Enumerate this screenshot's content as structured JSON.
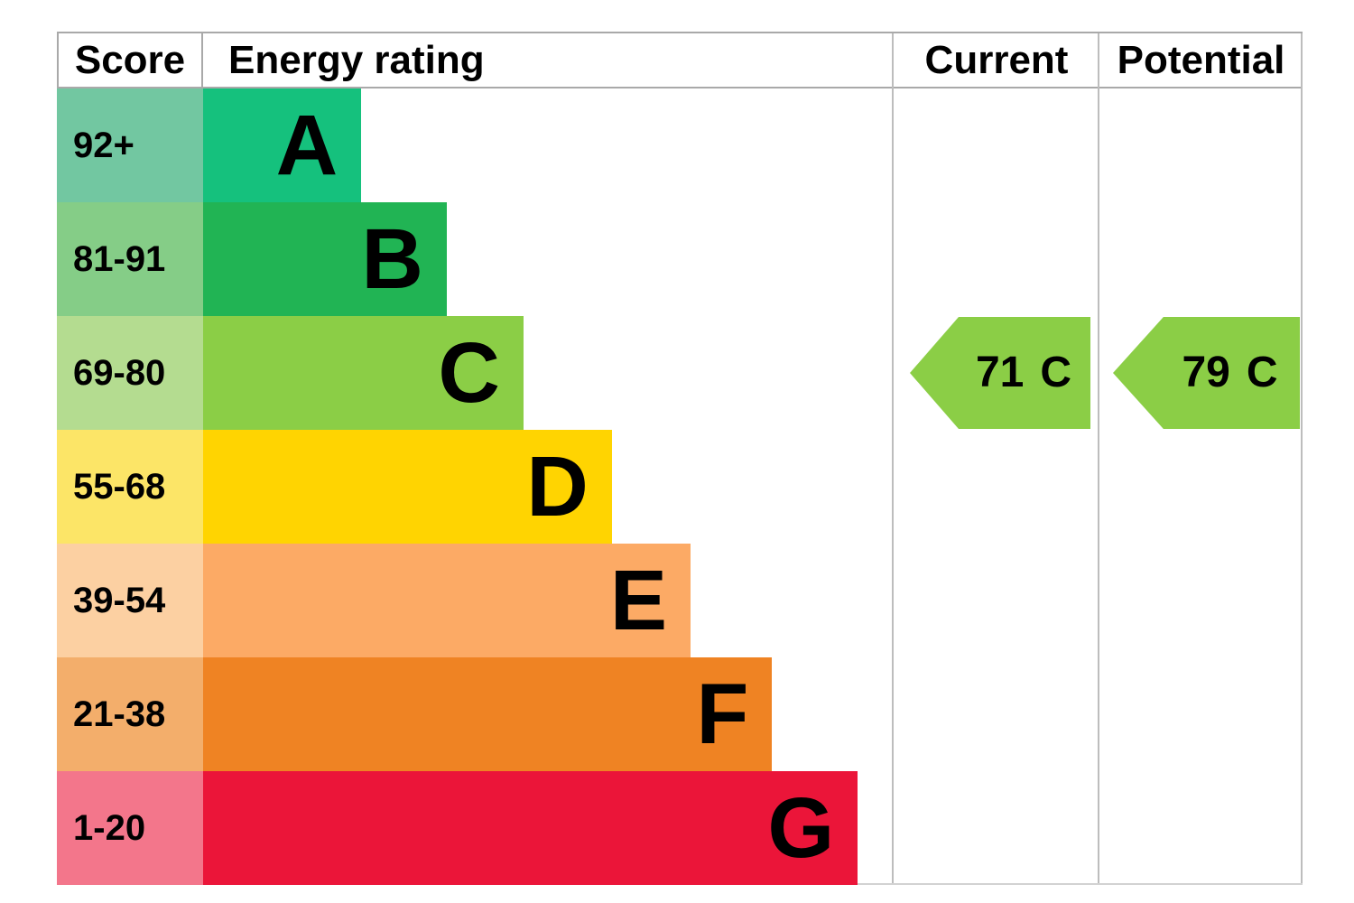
{
  "chart_data": {
    "type": "bar",
    "title": "",
    "columns": [
      "Score",
      "Energy rating",
      "Current",
      "Potential"
    ],
    "categories": [
      "A",
      "B",
      "C",
      "D",
      "E",
      "F",
      "G"
    ],
    "score_ranges": [
      "92+",
      "81-91",
      "69-80",
      "55-68",
      "39-54",
      "21-38",
      "1-20"
    ],
    "bar_lengths_pct_of_column": [
      22.9,
      35.3,
      46.4,
      59.2,
      70.6,
      82.4,
      94.8
    ],
    "bar_colors": [
      "#15c17d",
      "#21b454",
      "#8bce46",
      "#ffd401",
      "#fcaa65",
      "#ef8323",
      "#eb1539"
    ],
    "markers": [
      {
        "label": "Current",
        "value": 71,
        "band": "C"
      },
      {
        "label": "Potential",
        "value": 79,
        "band": "C"
      }
    ],
    "legend_position": "none",
    "grid": false
  },
  "header": {
    "score": "Score",
    "energy_rating": "Energy rating",
    "current": "Current",
    "potential": "Potential"
  },
  "bands": [
    {
      "score": "92+",
      "letter": "A",
      "bar_color": "#15c17d",
      "score_tint_color": "#72c7a1",
      "bar_width_pct": 22.9
    },
    {
      "score": "81-91",
      "letter": "B",
      "bar_color": "#21b454",
      "score_tint_color": "#85cd87",
      "bar_width_pct": 35.3
    },
    {
      "score": "69-80",
      "letter": "C",
      "bar_color": "#8bce46",
      "score_tint_color": "#b4dc90",
      "bar_width_pct": 46.4
    },
    {
      "score": "55-68",
      "letter": "D",
      "bar_color": "#ffd401",
      "score_tint_color": "#fce567",
      "bar_width_pct": 59.2
    },
    {
      "score": "39-54",
      "letter": "E",
      "bar_color": "#fcaa65",
      "score_tint_color": "#fcd0a2",
      "bar_width_pct": 70.6
    },
    {
      "score": "21-38",
      "letter": "F",
      "bar_color": "#ef8323",
      "score_tint_color": "#f3ae6b",
      "bar_width_pct": 82.4
    },
    {
      "score": "1-20",
      "letter": "G",
      "bar_color": "#eb1539",
      "score_tint_color": "#f3768b",
      "bar_width_pct": 94.8
    }
  ],
  "current": {
    "value": "71",
    "letter": "C",
    "arrow_color": "#8bce46"
  },
  "potential": {
    "value": "79",
    "letter": "C",
    "arrow_color": "#8bce46"
  }
}
